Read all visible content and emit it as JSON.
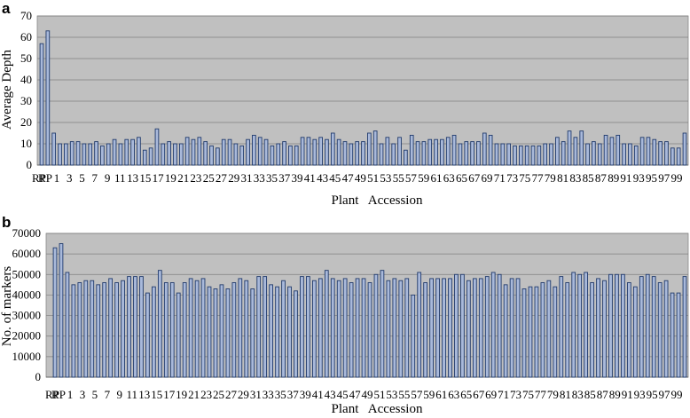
{
  "colors": {
    "plot_bg": "#c0c0c0",
    "bar_fill": "#a9b9da",
    "bar_stroke": "#203a6b",
    "grid": "#7f7f7f"
  },
  "chart_data": [
    {
      "panel_label": "a",
      "type": "bar",
      "ylabel": "Average Depth",
      "xlabel": "Plant   Accession",
      "ylim": [
        0,
        70
      ],
      "yticks": [
        0,
        10,
        20,
        30,
        40,
        50,
        60,
        70
      ],
      "grid": true,
      "tick_labels": [
        "RP",
        "RP",
        "1",
        "3",
        "5",
        "7",
        "9",
        "11",
        "13",
        "15",
        "17",
        "19",
        "21",
        "23",
        "25",
        "27",
        "29",
        "31",
        "33",
        "35",
        "37",
        "39",
        "41",
        "43",
        "45",
        "47",
        "49",
        "51",
        "53",
        "55",
        "57",
        "59",
        "61",
        "63",
        "65",
        "67",
        "69",
        "71",
        "73",
        "75",
        "77",
        "79",
        "81",
        "83",
        "85",
        "87",
        "89",
        "91",
        "93",
        "95",
        "97",
        "99"
      ],
      "values": [
        57,
        63,
        15,
        10,
        10,
        11,
        11,
        10,
        10,
        11,
        9,
        10,
        12,
        10,
        12,
        12,
        13,
        7,
        8,
        17,
        10,
        11,
        10,
        10,
        13,
        12,
        13,
        11,
        9,
        8,
        12,
        12,
        10,
        9,
        12,
        14,
        13,
        12,
        9,
        10,
        11,
        9,
        9,
        13,
        13,
        12,
        13,
        12,
        15,
        12,
        11,
        10,
        11,
        11,
        15,
        16,
        10,
        13,
        10,
        13,
        7,
        14,
        11,
        11,
        12,
        12,
        12,
        13,
        14,
        10,
        11,
        11,
        11,
        15,
        14,
        10,
        10,
        10,
        9,
        9,
        9,
        9,
        9,
        10,
        10,
        13,
        11,
        16,
        13,
        16,
        10,
        11,
        10,
        14,
        13,
        14,
        10,
        10,
        9,
        13,
        13,
        12,
        11,
        11,
        8,
        8,
        15
      ]
    },
    {
      "panel_label": "b",
      "type": "bar",
      "ylabel": "No. of markers",
      "xlabel": "Plant   Accession",
      "ylim": [
        0,
        70000
      ],
      "yticks": [
        0,
        10000,
        20000,
        30000,
        40000,
        50000,
        60000,
        70000
      ],
      "grid": true,
      "tick_labels": [
        "RP",
        "RP",
        "1",
        "3",
        "5",
        "7",
        "9",
        "11",
        "13",
        "15",
        "17",
        "19",
        "21",
        "23",
        "25",
        "27",
        "29",
        "31",
        "33",
        "35",
        "37",
        "39",
        "41",
        "43",
        "45",
        "47",
        "49",
        "51",
        "53",
        "55",
        "57",
        "59",
        "61",
        "63",
        "65",
        "67",
        "69",
        "71",
        "73",
        "75",
        "77",
        "79",
        "81",
        "83",
        "85",
        "87",
        "89",
        "91",
        "93",
        "95",
        "97",
        "99"
      ],
      "values": [
        63000,
        65000,
        51000,
        45000,
        46000,
        47000,
        47000,
        45000,
        46000,
        48000,
        46000,
        47000,
        49000,
        49000,
        49000,
        41000,
        44000,
        52000,
        46000,
        46000,
        41000,
        46000,
        48000,
        47000,
        48000,
        44000,
        43000,
        45000,
        43000,
        46000,
        48000,
        47000,
        43000,
        49000,
        49000,
        45000,
        44000,
        47000,
        44000,
        42000,
        49000,
        49000,
        47000,
        48000,
        52000,
        48000,
        47000,
        48000,
        46000,
        48000,
        48000,
        46000,
        50000,
        52000,
        47000,
        48000,
        47000,
        48000,
        40000,
        51000,
        46000,
        48000,
        48000,
        48000,
        48000,
        50000,
        50000,
        47000,
        48000,
        48000,
        49000,
        51000,
        50000,
        45000,
        48000,
        48000,
        43000,
        44000,
        44000,
        46000,
        47000,
        44000,
        49000,
        46000,
        51000,
        50000,
        51000,
        46000,
        48000,
        47000,
        50000,
        50000,
        50000,
        46000,
        44000,
        49000,
        50000,
        49000,
        46000,
        47000,
        41000,
        41000,
        49000
      ]
    }
  ]
}
